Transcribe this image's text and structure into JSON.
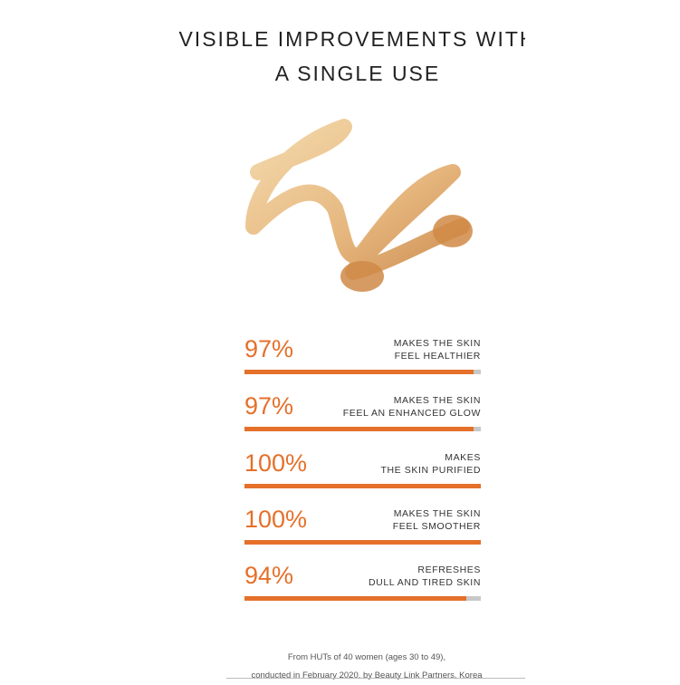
{
  "title": {
    "line1": "VISIBLE IMPROVEMENTS WITH",
    "line2": "A SINGLE USE"
  },
  "accent_color": "#e5702a",
  "stats": [
    {
      "percent": "97%",
      "value": 97,
      "label1": "MAKES THE SKIN",
      "label2": "FEEL HEALTHIER"
    },
    {
      "percent": "97%",
      "value": 97,
      "label1": "MAKES THE SKIN",
      "label2": "FEEL AN ENHANCED GLOW"
    },
    {
      "percent": "100%",
      "value": 100,
      "label1": "MAKES",
      "label2": "THE SKIN PURIFIED"
    },
    {
      "percent": "100%",
      "value": 100,
      "label1": "MAKES THE SKIN",
      "label2": "FEEL SMOOTHER"
    },
    {
      "percent": "94%",
      "value": 94,
      "label1": "REFRESHES",
      "label2": "DULL AND TIRED SKIN"
    }
  ],
  "footnote": {
    "line1": "From HUTs of 40 women (ages 30 to 49),",
    "line2": "conducted in February 2020, by Beauty Link Partners, Korea"
  }
}
